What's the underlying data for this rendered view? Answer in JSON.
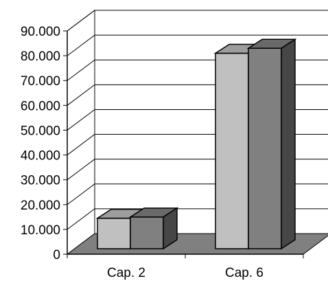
{
  "chart_data": {
    "type": "bar",
    "style": "3d-clustered-column",
    "title": "",
    "xlabel": "",
    "ylabel": "",
    "categories": [
      "Cap. 2",
      "Cap. 6"
    ],
    "series": [
      {
        "values": [
          14500,
          81000
        ],
        "color": "#c0c0c0"
      },
      {
        "values": [
          15000,
          83000
        ],
        "color": "#808080"
      }
    ],
    "ylim": [
      0,
      90000
    ],
    "y_ticks": [
      0,
      10000,
      20000,
      30000,
      40000,
      50000,
      60000,
      70000,
      80000,
      90000
    ],
    "y_tick_labels": [
      "0",
      "10.000",
      "20.000",
      "30.000",
      "40.000",
      "50.000",
      "60.000",
      "70.000",
      "80.000",
      "90.000"
    ],
    "grid": true,
    "legend": "none",
    "floor_color": "#808080",
    "wall_color": "#ffffff"
  }
}
